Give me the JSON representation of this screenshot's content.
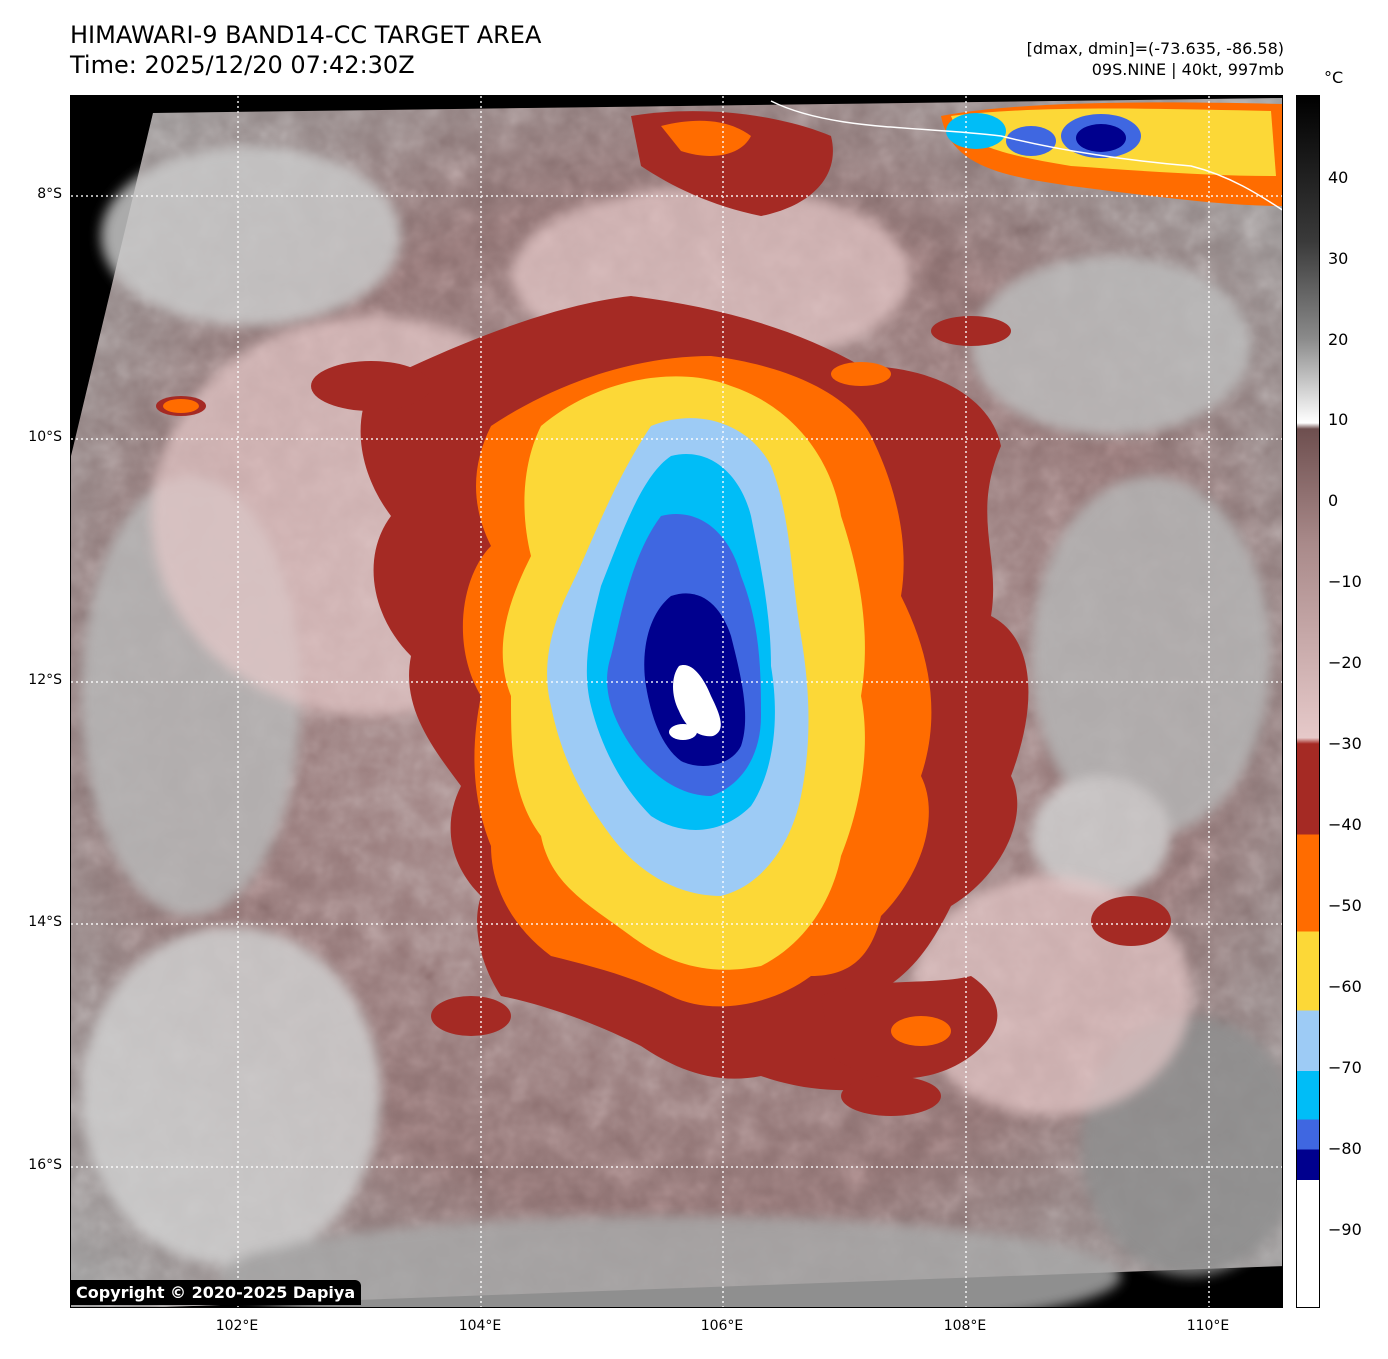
{
  "header": {
    "title_line1": "HIMAWARI-9 BAND14-CC TARGET AREA",
    "title_line2": "Time: 2025/12/20 07:42:30Z",
    "info_line1": "[dmax, dmin]=(-73.635, -86.58)",
    "info_line2": "09S.NINE | 40kt, 997mb"
  },
  "map": {
    "lat_labels": [
      "8°S",
      "10°S",
      "12°S",
      "14°S",
      "16°S"
    ],
    "lon_labels": [
      "102°E",
      "104°E",
      "106°E",
      "108°E",
      "110°E"
    ],
    "copyright": "Copyright © 2020-2025 Dapiya"
  },
  "colorbar": {
    "unit": "°C",
    "ticks": [
      "40",
      "30",
      "20",
      "10",
      "0",
      "−10",
      "−20",
      "−30",
      "−40",
      "−50",
      "−60",
      "−70",
      "−80",
      "−90"
    ],
    "colors": {
      "warm_gray": "#8c8c8c",
      "brown": "#6e4f4f",
      "pink": "#e6c9c9",
      "dark_red": "#a52a24",
      "orange": "#ff6c00",
      "yellow": "#fcd837",
      "light_blue": "#9dcbf5",
      "cyan": "#00bdf7",
      "blue": "#3f67e1",
      "navy": "#00008e",
      "white": "#ffffff"
    }
  }
}
